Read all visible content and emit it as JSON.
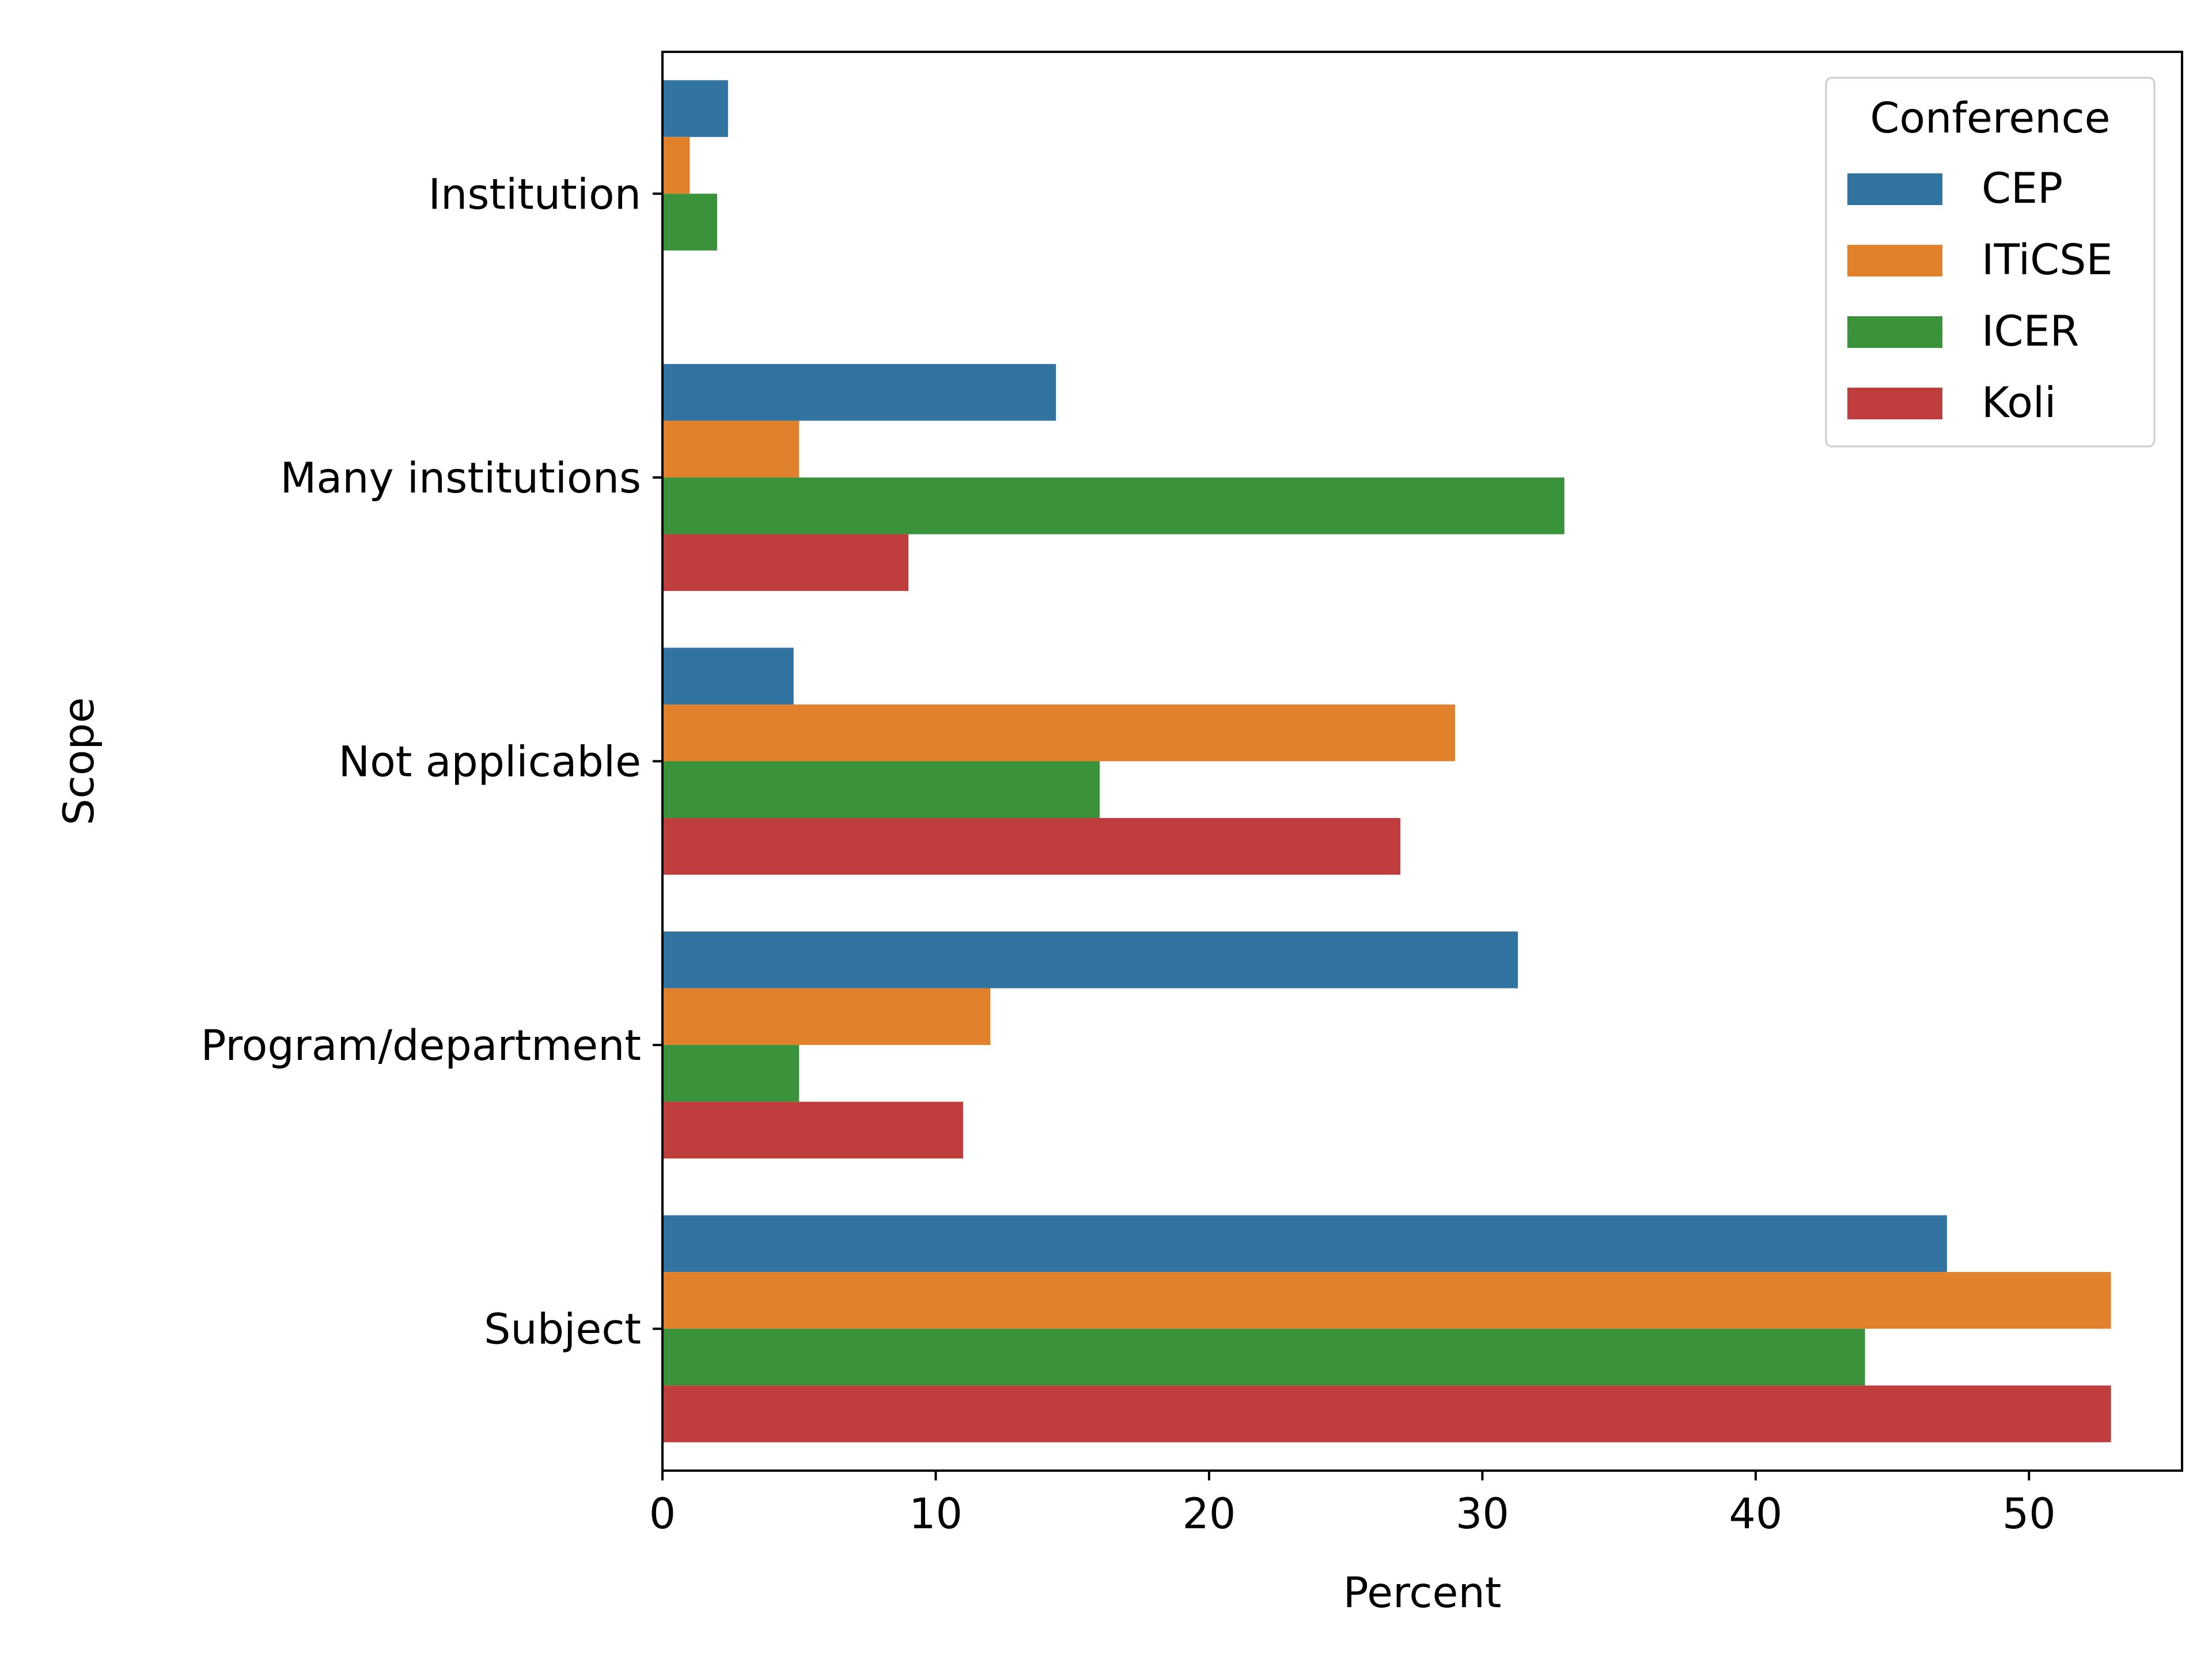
{
  "chart_data": {
    "type": "bar",
    "orientation": "horizontal",
    "xlabel": "Percent",
    "ylabel": "Scope",
    "xlim": [
      0,
      55.6
    ],
    "xticks": [
      0,
      10,
      20,
      30,
      40,
      50
    ],
    "grid": false,
    "categories": [
      "Institution",
      "Many institutions",
      "Not applicable",
      "Program/department",
      "Subject"
    ],
    "legend": {
      "title": "Conference",
      "placement": "top-right"
    },
    "series": [
      {
        "name": "CEP",
        "color": "#3274a1",
        "values": [
          2.4,
          14.4,
          4.8,
          31.3,
          47.0
        ]
      },
      {
        "name": "ITiCSE",
        "color": "#e1812c",
        "values": [
          1.0,
          5.0,
          29.0,
          12.0,
          53.0
        ]
      },
      {
        "name": "ICER",
        "color": "#3a923a",
        "values": [
          2.0,
          33.0,
          16.0,
          5.0,
          44.0
        ]
      },
      {
        "name": "Koli",
        "color": "#c03d3e",
        "values": [
          0,
          9.0,
          27.0,
          11.0,
          53.0
        ]
      }
    ]
  }
}
